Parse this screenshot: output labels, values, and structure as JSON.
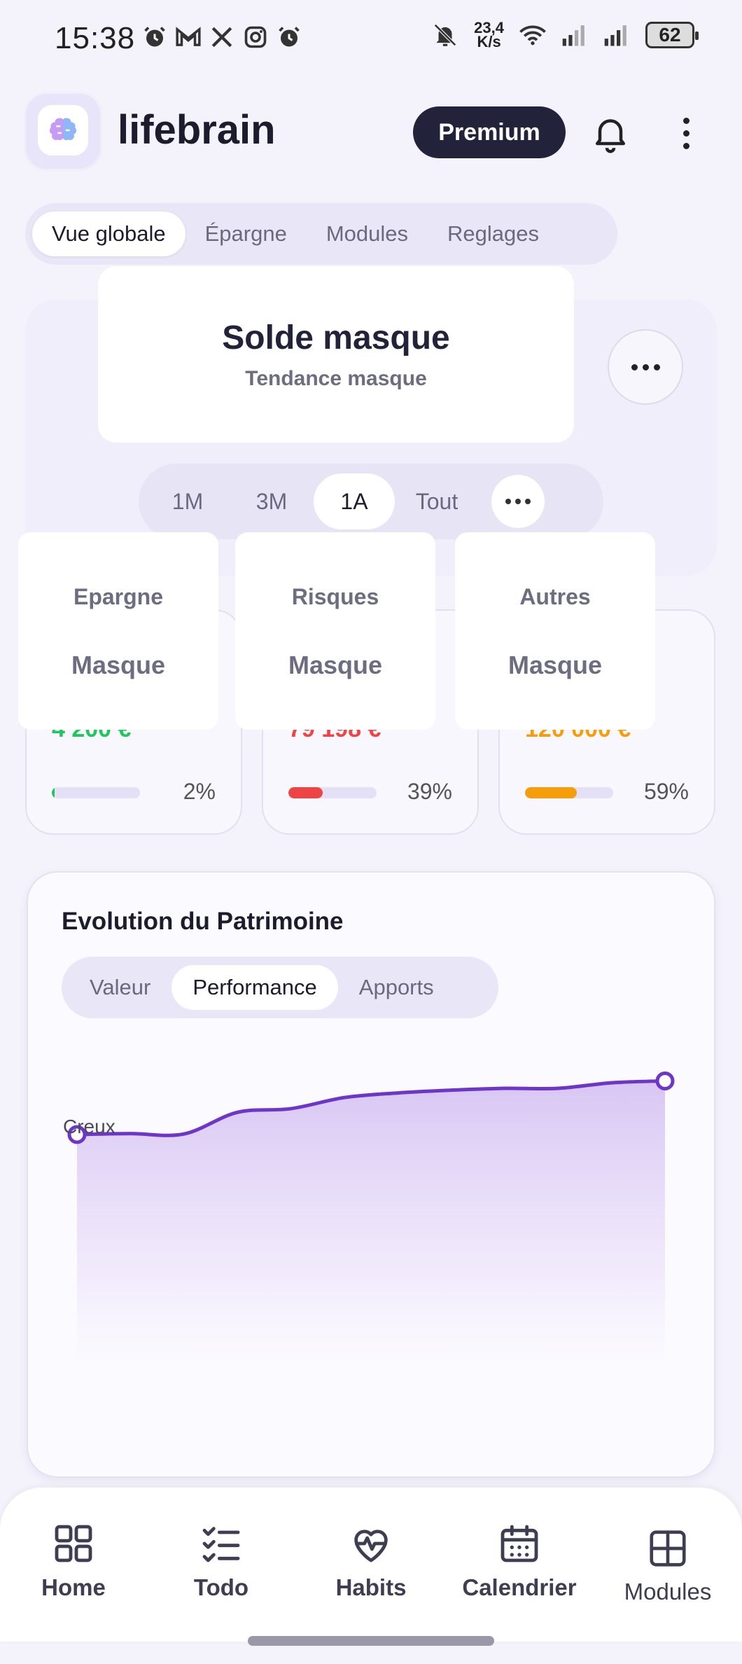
{
  "status_bar": {
    "time": "15:38",
    "net_speed_value": "23,4",
    "net_speed_unit": "K/s",
    "battery": "62",
    "left_icons": [
      "alarm-icon",
      "gmail-icon",
      "x-icon",
      "instagram-icon",
      "alarm-icon"
    ],
    "right_icons": [
      "bell-off-icon",
      "wifi-icon",
      "signal-icon",
      "signal-icon"
    ]
  },
  "header": {
    "app_name": "lifebrain",
    "premium_label": "Premium",
    "brand_color": "#22223a"
  },
  "tabs": [
    {
      "label": "Vue globale",
      "active": true
    },
    {
      "label": "Épargne",
      "active": false
    },
    {
      "label": "Modules",
      "active": false
    },
    {
      "label": "Reglages",
      "active": false
    }
  ],
  "balance": {
    "title": "Solde masque",
    "subtitle": "Tendance masque"
  },
  "periods": [
    {
      "label": "1M",
      "active": false
    },
    {
      "label": "3M",
      "active": false
    },
    {
      "label": "1A",
      "active": true
    },
    {
      "label": "Tout",
      "active": false
    }
  ],
  "stat_cards": [
    {
      "mask_label": "Epargne",
      "mask_value": "Masque",
      "value": "4 200 €",
      "percent": "2%",
      "fraction": 0.02,
      "color": "#22c55e"
    },
    {
      "mask_label": "Risques",
      "mask_value": "Masque",
      "value": "79 198 €",
      "percent": "39%",
      "fraction": 0.39,
      "color": "#ef4444"
    },
    {
      "mask_label": "Autres",
      "mask_value": "Masque",
      "value": "120 000 €",
      "percent": "59%",
      "fraction": 0.59,
      "color": "#f59e0b"
    }
  ],
  "evolution": {
    "title": "Evolution du Patrimoine",
    "tabs": [
      {
        "label": "Valeur",
        "active": false
      },
      {
        "label": "Performance",
        "active": true
      },
      {
        "label": "Apports",
        "active": false
      }
    ],
    "annotation": "Creux",
    "line_color": "#6d35c8"
  },
  "chart_data": {
    "type": "area",
    "x": [
      0,
      1,
      2,
      3,
      4,
      5,
      6,
      7,
      8,
      9,
      10,
      11
    ],
    "values": [
      10,
      11,
      10.6,
      34,
      38,
      50,
      55,
      58,
      60,
      60,
      66,
      68
    ],
    "ylim": [
      0,
      100
    ],
    "grid": false,
    "legend": "none"
  },
  "bottom_nav": [
    {
      "label": "Home",
      "icon": "grid-icon"
    },
    {
      "label": "Todo",
      "icon": "checklist-icon"
    },
    {
      "label": "Habits",
      "icon": "heart-pulse-icon"
    },
    {
      "label": "Calendrier",
      "icon": "calendar-icon"
    },
    {
      "label": "Modules",
      "icon": "modules-icon"
    }
  ]
}
